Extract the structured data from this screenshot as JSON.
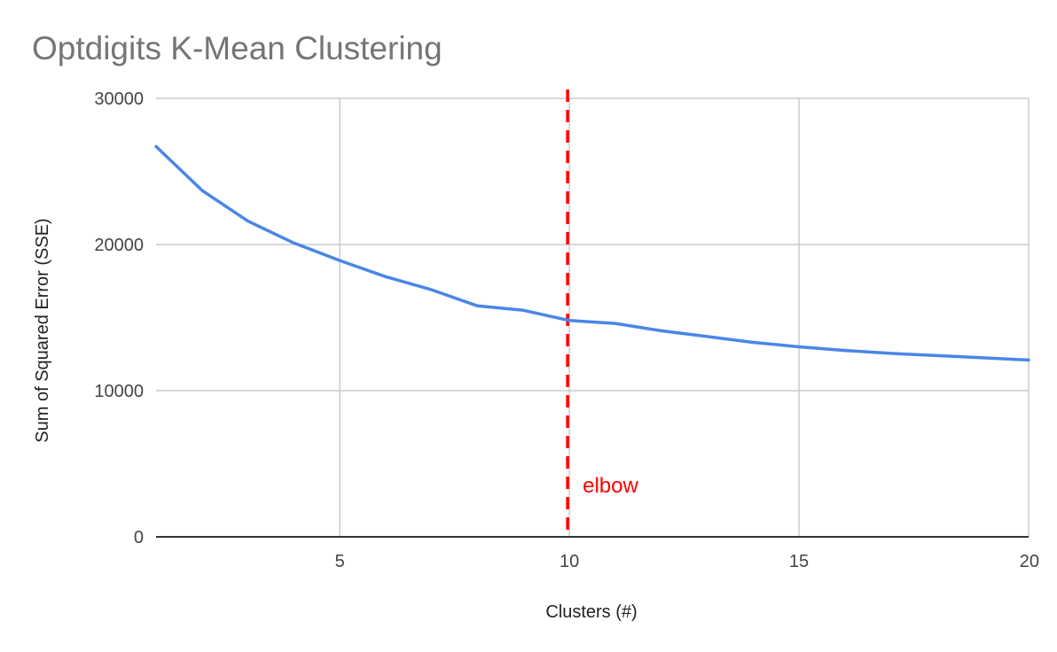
{
  "chart_data": {
    "type": "line",
    "title": "Optdigits K-Mean Clustering",
    "xlabel": "Clusters (#)",
    "ylabel": "Sum of Squared Error (SSE)",
    "xlim": [
      1,
      20
    ],
    "ylim": [
      0,
      30000
    ],
    "x_ticks": [
      5,
      10,
      15,
      20
    ],
    "y_ticks": [
      0,
      10000,
      20000,
      30000
    ],
    "grid": true,
    "legend": "none",
    "series": [
      {
        "color": "#4a86e8",
        "x": [
          1,
          2,
          3,
          4,
          5,
          6,
          7,
          8,
          9,
          10,
          11,
          12,
          13,
          14,
          15,
          16,
          17,
          18,
          19,
          20
        ],
        "values": [
          26700,
          23700,
          21600,
          20100,
          18900,
          17800,
          16900,
          15800,
          15500,
          14800,
          14600,
          14100,
          13700,
          13300,
          13000,
          12750,
          12550,
          12400,
          12250,
          12100
        ]
      }
    ],
    "annotations": [
      {
        "type": "vertical-line",
        "x": 10,
        "style": "dashed",
        "color": "#ff0000",
        "label": "elbow"
      }
    ]
  }
}
